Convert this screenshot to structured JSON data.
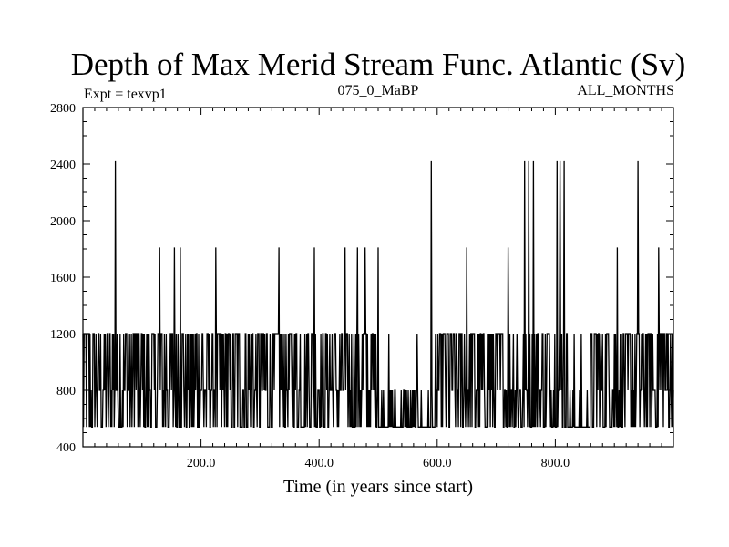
{
  "chart_data": {
    "type": "line",
    "title": "Depth of Max Merid Stream Func. Atlantic (Sv)",
    "subtitle_left": "Expt = texvp1",
    "subtitle_center": "075_0_MaBP",
    "subtitle_right": "ALL_MONTHS",
    "xlabel": "Time (in years since start)",
    "ylabel": "",
    "xlim": [
      0,
      1000
    ],
    "ylim": [
      400,
      2800
    ],
    "xticks": [
      200,
      400,
      600,
      800
    ],
    "xtick_labels": [
      "200.0",
      "400.0",
      "600.0",
      "800.0"
    ],
    "yticks": [
      400,
      800,
      1200,
      1600,
      2000,
      2400,
      2800
    ],
    "ytick_labels": [
      "400",
      "800",
      "1200",
      "1600",
      "2000",
      "2400",
      "2800"
    ],
    "grid": false,
    "color": "#000000",
    "base_levels": [
      540,
      800,
      1200
    ],
    "spikes": [
      {
        "x": 55,
        "y": 2420
      },
      {
        "x": 130,
        "y": 1810
      },
      {
        "x": 155,
        "y": 1810
      },
      {
        "x": 165,
        "y": 1810
      },
      {
        "x": 225,
        "y": 1810
      },
      {
        "x": 332,
        "y": 1810
      },
      {
        "x": 392,
        "y": 1810
      },
      {
        "x": 444,
        "y": 1810
      },
      {
        "x": 465,
        "y": 1810
      },
      {
        "x": 478,
        "y": 1810
      },
      {
        "x": 500,
        "y": 1810
      },
      {
        "x": 590,
        "y": 2420
      },
      {
        "x": 650,
        "y": 1810
      },
      {
        "x": 720,
        "y": 1810
      },
      {
        "x": 748,
        "y": 2420
      },
      {
        "x": 755,
        "y": 2420
      },
      {
        "x": 763,
        "y": 2420
      },
      {
        "x": 803,
        "y": 2420
      },
      {
        "x": 808,
        "y": 2420
      },
      {
        "x": 815,
        "y": 2420
      },
      {
        "x": 905,
        "y": 1810
      },
      {
        "x": 940,
        "y": 2420
      },
      {
        "x": 975,
        "y": 1810
      }
    ]
  }
}
